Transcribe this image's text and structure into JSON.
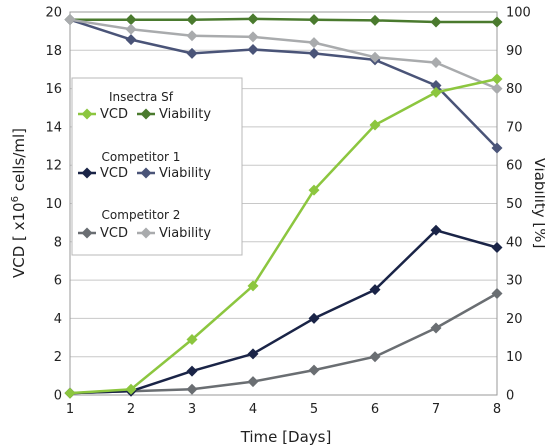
{
  "chart_data": {
    "type": "line",
    "xlabel": "Time [Days]",
    "ylabel_left_main": "VCD [ x10",
    "ylabel_left_sup": "6",
    "ylabel_left_tail": " cells/ml]",
    "ylabel_right": "Viability [%]",
    "x": [
      1,
      2,
      3,
      4,
      5,
      6,
      7,
      8
    ],
    "xlim": [
      1,
      8
    ],
    "ylim_left": [
      0,
      20
    ],
    "ylim_right": [
      0,
      100
    ],
    "yticks_left": [
      0,
      2,
      4,
      6,
      8,
      10,
      12,
      14,
      16,
      18,
      20
    ],
    "yticks_right": [
      0,
      10,
      20,
      30,
      40,
      50,
      60,
      70,
      80,
      90,
      100
    ],
    "grid": "horizontal",
    "legend_position": "left",
    "legend": [
      {
        "group": "Insectra Sf",
        "vcd_label": "VCD",
        "viability_label": "Viability"
      },
      {
        "group": "Competitor 1",
        "vcd_label": "VCD",
        "viability_label": "Viability"
      },
      {
        "group": "Competitor 2",
        "vcd_label": "VCD",
        "viability_label": "Viability"
      }
    ],
    "series": [
      {
        "name": "Insectra Sf VCD",
        "axis": "left",
        "color": "#8cc63f",
        "values": [
          0.1,
          0.3,
          2.9,
          5.7,
          10.7,
          14.1,
          15.8,
          16.5
        ]
      },
      {
        "name": "Insectra Sf Viability",
        "axis": "right",
        "color": "#4a7a2e",
        "values": [
          98,
          98,
          98,
          98.2,
          98,
          97.8,
          97.4,
          97.4
        ]
      },
      {
        "name": "Competitor 1 VCD",
        "axis": "left",
        "color": "#1a2447",
        "values": [
          0.1,
          0.2,
          1.25,
          2.15,
          4.0,
          5.5,
          8.6,
          7.7
        ]
      },
      {
        "name": "Competitor 1 Viability",
        "axis": "right",
        "color": "#4a5478",
        "values": [
          98,
          92.8,
          89.2,
          90.2,
          89.2,
          87.5,
          80.8,
          64.5
        ]
      },
      {
        "name": "Competitor 2 VCD",
        "axis": "left",
        "color": "#6a6e72",
        "values": [
          0.1,
          0.2,
          0.3,
          0.7,
          1.3,
          2.0,
          3.5,
          5.3
        ]
      },
      {
        "name": "Competitor 2 Viability",
        "axis": "right",
        "color": "#a9abad",
        "values": [
          98,
          95.5,
          93.8,
          93.5,
          92,
          88.2,
          86.8,
          80
        ]
      }
    ]
  }
}
